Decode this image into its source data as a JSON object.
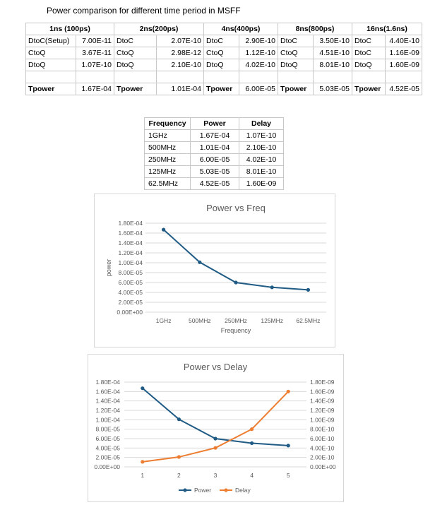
{
  "page_title": "Power comparison for different time period in MSFF",
  "main_table": {
    "headers": [
      "1ns (100ps)",
      "2ns(200ps)",
      "4ns(400ps)",
      "8ns(800ps)",
      "16ns(1.6ns)"
    ],
    "rows": [
      [
        [
          "DtoC(Setup)",
          "7.00E-11"
        ],
        [
          "DtoC",
          "2.07E-10"
        ],
        [
          "DtoC",
          "2.90E-10"
        ],
        [
          "DtoC",
          "3.50E-10"
        ],
        [
          "DtoC",
          "4.40E-10"
        ]
      ],
      [
        [
          "CtoQ",
          "3.67E-11"
        ],
        [
          "CtoQ",
          "2.98E-12"
        ],
        [
          "CtoQ",
          "1.12E-10"
        ],
        [
          "CtoQ",
          "4.51E-10"
        ],
        [
          "DtoC",
          "1.16E-09"
        ]
      ],
      [
        [
          "DtoQ",
          "1.07E-10"
        ],
        [
          "DtoQ",
          "2.10E-10"
        ],
        [
          "DtoQ",
          "4.02E-10"
        ],
        [
          "DtoQ",
          "8.01E-10"
        ],
        [
          "DtoQ",
          "1.60E-09"
        ]
      ]
    ],
    "tpower_label": "Tpower",
    "tpower_values": [
      "1.67E-04",
      "1.01E-04",
      "6.00E-05",
      "5.03E-05",
      "4.52E-05"
    ]
  },
  "freq_table": {
    "headers": [
      "Frequency",
      "Power",
      "Delay"
    ],
    "rows": [
      [
        "1GHz",
        "1.67E-04",
        "1.07E-10"
      ],
      [
        "500MHz",
        "1.01E-04",
        "2.10E-10"
      ],
      [
        "250MHz",
        "6.00E-05",
        "4.02E-10"
      ],
      [
        "125MHz",
        "5.03E-05",
        "8.01E-10"
      ],
      [
        "62.5MHz",
        "4.52E-05",
        "1.60E-09"
      ]
    ]
  },
  "chart_data": [
    {
      "type": "line",
      "title": "Power vs Freq",
      "xlabel": "Frequency",
      "ylabel": "power",
      "categories": [
        "1GHz",
        "500MHz",
        "250MHz",
        "125MHz",
        "62.5MHz"
      ],
      "values": [
        0.000167,
        0.000101,
        6e-05,
        5.03e-05,
        4.52e-05
      ],
      "ylim": [
        0,
        0.00018
      ],
      "yticks": [
        "0.00E+00",
        "2.00E-05",
        "4.00E-05",
        "6.00E-05",
        "8.00E-05",
        "1.00E-04",
        "1.20E-04",
        "1.40E-04",
        "1.60E-04",
        "1.80E-04"
      ],
      "grid": true,
      "color": "#1f5b84"
    },
    {
      "type": "line",
      "title": "Power vs Delay",
      "categories": [
        "1",
        "2",
        "3",
        "4",
        "5"
      ],
      "series": [
        {
          "name": "Power",
          "values": [
            0.000167,
            0.000101,
            6e-05,
            5.03e-05,
            4.52e-05
          ],
          "axis": "left",
          "color": "#1f5b84"
        },
        {
          "name": "Delay",
          "values": [
            1.07e-10,
            2.1e-10,
            4.02e-10,
            8.01e-10,
            1.6e-09
          ],
          "axis": "right",
          "color": "#ed7d31"
        }
      ],
      "ylim": [
        0,
        0.00018
      ],
      "y2lim": [
        0,
        1.8e-09
      ],
      "yticks": [
        "0.00E+00",
        "2.00E-05",
        "4.00E-05",
        "6.00E-05",
        "8.00E-05",
        "1.00E-04",
        "1.20E-04",
        "1.40E-04",
        "1.60E-04",
        "1.80E-04"
      ],
      "y2ticks": [
        "0.00E+00",
        "2.00E-10",
        "4.00E-10",
        "6.00E-10",
        "8.00E-10",
        "1.00E-09",
        "1.20E-09",
        "1.40E-09",
        "1.60E-09",
        "1.80E-09"
      ],
      "grid": true,
      "legend": "bottom"
    }
  ]
}
